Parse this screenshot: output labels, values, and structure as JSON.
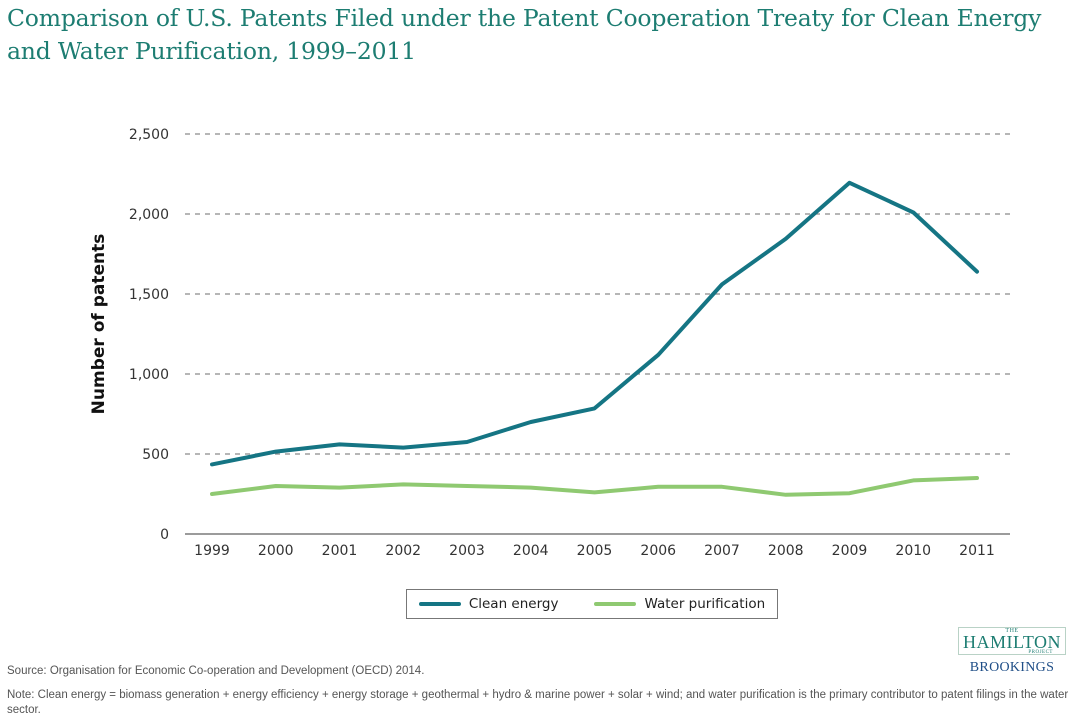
{
  "title": "Comparison of U.S. Patents Filed under the Patent Cooperation Treaty for Clean Energy and Water Purification, 1999–2011",
  "source": "Source: Organisation for Economic Co-operation and Development (OECD) 2014.",
  "note": "Note: Clean energy = biomass generation + energy efficiency + energy storage + geothermal + hydro & marine power + solar + wind; and water purification is the primary contributor to patent filings in the water sector.",
  "logo": {
    "the": "THE",
    "hamilton": "HAMILTON",
    "project": "PROJECT",
    "brookings": "BROOKINGS"
  },
  "colors": {
    "title": "#1d7d72",
    "clean_energy": "#157584",
    "water_purification": "#8fc971",
    "grid": "#8a8a8a",
    "axis": "#7a7a7a",
    "brookings": "#1f4e87"
  },
  "chart_data": {
    "type": "line",
    "title": "Comparison of U.S. Patents Filed under the Patent Cooperation Treaty for Clean Energy and Water Purification, 1999–2011",
    "xlabel": "",
    "ylabel": "Number of patents",
    "x": [
      "1999",
      "2000",
      "2001",
      "2002",
      "2003",
      "2004",
      "2005",
      "2006",
      "2007",
      "2008",
      "2009",
      "2010",
      "2011"
    ],
    "ylim": [
      0,
      2500
    ],
    "yticks": [
      0,
      500,
      1000,
      1500,
      2000,
      2500
    ],
    "ytick_labels": [
      "0",
      "500",
      "1,000",
      "1,500",
      "2,000",
      "2,500"
    ],
    "grid": "horizontal dashed",
    "legend_position": "bottom-center",
    "series": [
      {
        "name": "Clean energy",
        "color": "#157584",
        "values": [
          435,
          515,
          560,
          540,
          575,
          700,
          785,
          1120,
          1560,
          1845,
          2195,
          2010,
          1640
        ]
      },
      {
        "name": "Water purification",
        "color": "#8fc971",
        "values": [
          250,
          300,
          290,
          310,
          300,
          290,
          260,
          295,
          295,
          245,
          255,
          335,
          350
        ]
      }
    ]
  }
}
